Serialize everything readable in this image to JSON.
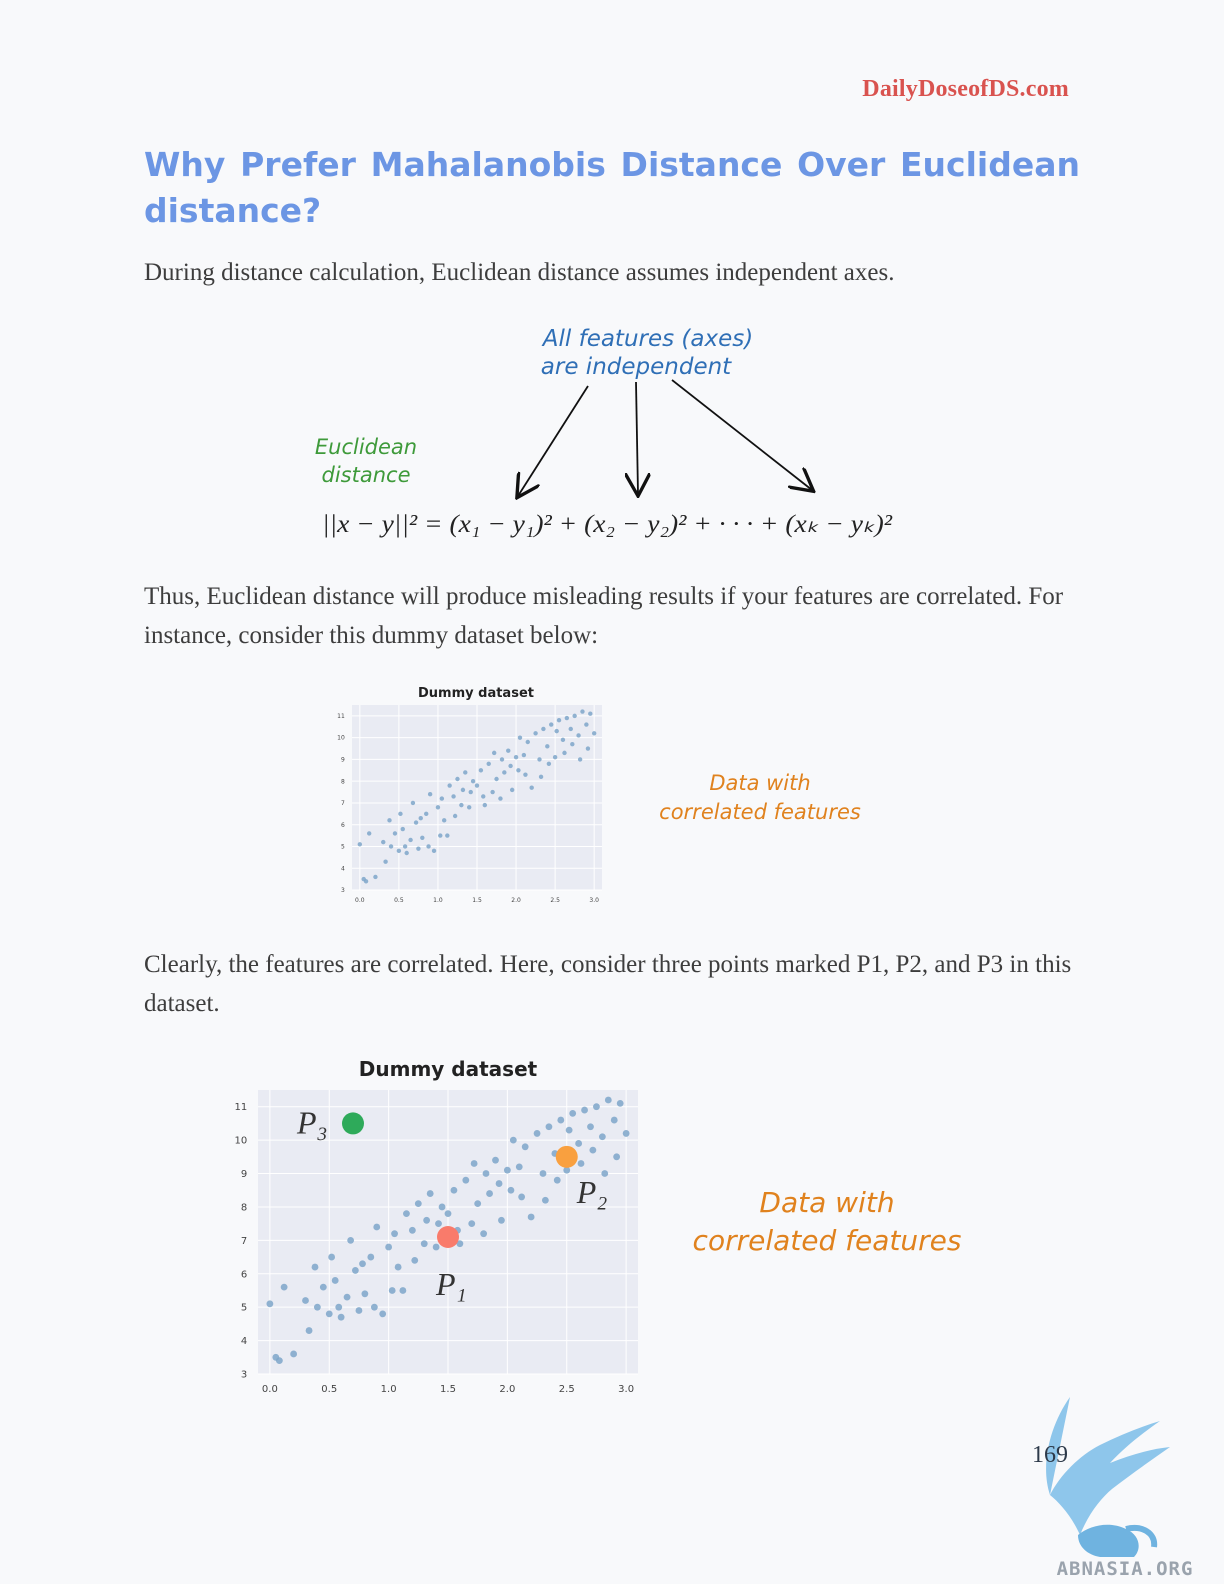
{
  "header": {
    "site": "DailyDoseofDS.com"
  },
  "title": "Why Prefer Mahalanobis Distance Over Euclidean distance?",
  "paragraphs": [
    "During distance calculation, Euclidean distance assumes independent axes.",
    "Thus, Euclidean distance will produce misleading results if your features are correlated. For instance, consider this dummy dataset below:",
    "Clearly, the features are correlated. Here, consider three points marked P1, P2, and P3 in this dataset."
  ],
  "figure1": {
    "annotation_line1": "All features (axes)",
    "annotation_line2": "are independent",
    "label_line1": "Euclidean",
    "label_line2": "distance",
    "formula": "||x − y||² = (x₁ − y₁)² + (x₂ − y₂)² + · · · + (xₖ − yₖ)²"
  },
  "figure2": {
    "annotation_line1": "Data with",
    "annotation_line2": "correlated features"
  },
  "figure3": {
    "annotation_line1": "Data with",
    "annotation_line2": "correlated features",
    "points": [
      {
        "name": "P₁",
        "x": 1.5,
        "y": 7.1,
        "color": "#f97b6b"
      },
      {
        "name": "P₂",
        "x": 2.5,
        "y": 9.5,
        "color": "#f9a03f"
      },
      {
        "name": "P₃",
        "x": 0.7,
        "y": 10.5,
        "color": "#2eaa5a"
      }
    ]
  },
  "chart_data": {
    "type": "scatter",
    "title": "Dummy dataset",
    "xlabel": "",
    "ylabel": "",
    "xlim": [
      -0.1,
      3.1
    ],
    "ylim": [
      3,
      11.5
    ],
    "xticks": [
      "0.0",
      "0.5",
      "1.0",
      "1.5",
      "2.0",
      "2.5",
      "3.0"
    ],
    "yticks": [
      "3",
      "4",
      "5",
      "6",
      "7",
      "8",
      "9",
      "10",
      "11"
    ],
    "grid": true,
    "point_color": "#7ea6c9",
    "x": [
      0.0,
      0.05,
      0.08,
      0.12,
      0.2,
      0.3,
      0.33,
      0.38,
      0.4,
      0.45,
      0.5,
      0.52,
      0.55,
      0.58,
      0.6,
      0.65,
      0.68,
      0.72,
      0.75,
      0.78,
      0.8,
      0.85,
      0.88,
      0.9,
      0.95,
      1.0,
      1.03,
      1.05,
      1.08,
      1.12,
      1.15,
      1.2,
      1.22,
      1.25,
      1.3,
      1.32,
      1.35,
      1.4,
      1.42,
      1.45,
      1.5,
      1.55,
      1.58,
      1.6,
      1.65,
      1.7,
      1.72,
      1.75,
      1.8,
      1.82,
      1.85,
      1.9,
      1.93,
      1.95,
      2.0,
      2.03,
      2.05,
      2.1,
      2.12,
      2.15,
      2.2,
      2.25,
      2.3,
      2.32,
      2.35,
      2.4,
      2.42,
      2.45,
      2.5,
      2.52,
      2.55,
      2.6,
      2.62,
      2.65,
      2.7,
      2.72,
      2.75,
      2.8,
      2.82,
      2.85,
      2.9,
      2.92,
      2.95,
      3.0
    ],
    "y": [
      5.1,
      3.5,
      3.4,
      5.6,
      3.6,
      5.2,
      4.3,
      6.2,
      5.0,
      5.6,
      4.8,
      6.5,
      5.8,
      5.0,
      4.7,
      5.3,
      7.0,
      6.1,
      4.9,
      6.3,
      5.4,
      6.5,
      5.0,
      7.4,
      4.8,
      6.8,
      5.5,
      7.2,
      6.2,
      5.5,
      7.8,
      7.3,
      6.4,
      8.1,
      6.9,
      7.6,
      8.4,
      6.8,
      7.5,
      8.0,
      7.8,
      8.5,
      7.3,
      6.9,
      8.8,
      7.5,
      9.3,
      8.1,
      7.2,
      9.0,
      8.4,
      9.4,
      8.7,
      7.6,
      9.1,
      8.5,
      10.0,
      9.2,
      8.3,
      9.8,
      7.7,
      10.2,
      9.0,
      8.2,
      10.4,
      9.6,
      8.8,
      10.6,
      9.1,
      10.3,
      10.8,
      9.9,
      9.3,
      10.9,
      10.4,
      9.7,
      11.0,
      10.1,
      9.0,
      11.2,
      10.6,
      9.5,
      11.1,
      10.2
    ]
  }
}
